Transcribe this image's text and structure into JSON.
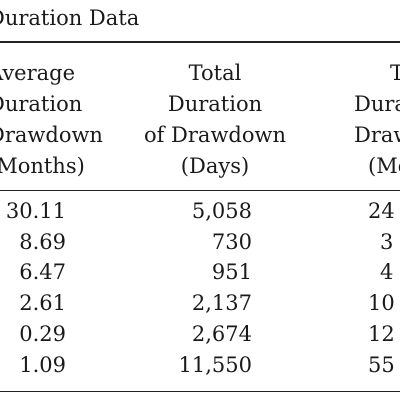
{
  "table": {
    "title": "Duration Data",
    "headers": [
      {
        "lines": [
          "Average",
          "Duration",
          "Drawdown",
          "(Months)"
        ]
      },
      {
        "lines": [
          "Total",
          "Duration",
          "of Drawdown",
          "(Days)"
        ]
      },
      {
        "lines": [
          "T",
          "Dura",
          "Draw",
          "(Mo"
        ]
      }
    ],
    "rows": [
      [
        "30.11",
        "5,058",
        "24"
      ],
      [
        "8.69",
        "730",
        "3"
      ],
      [
        "6.47",
        "951",
        "4"
      ],
      [
        "2.61",
        "2,137",
        "10"
      ],
      [
        "0.29",
        "2,674",
        "12"
      ],
      [
        "1.09",
        "11,550",
        "55"
      ]
    ]
  }
}
